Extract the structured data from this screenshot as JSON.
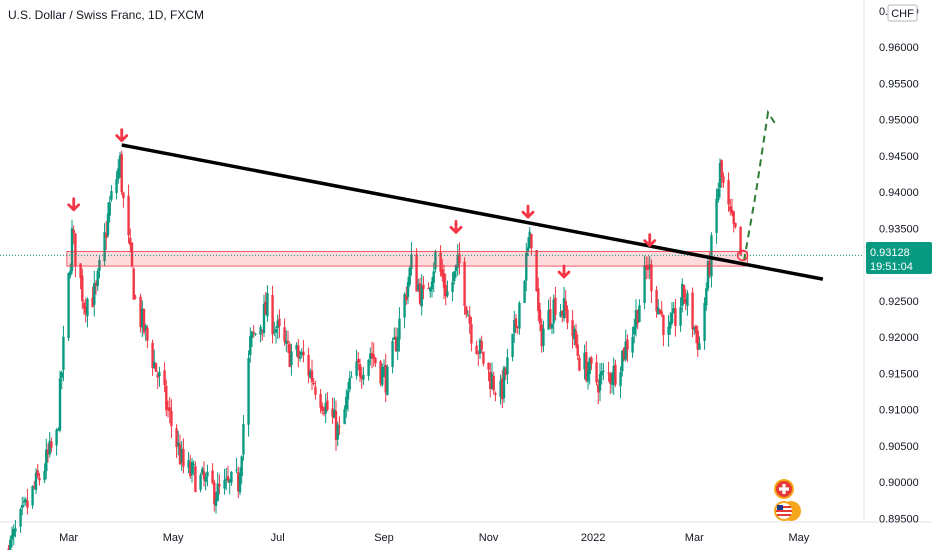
{
  "header": {
    "title": "U.S. Dollar / Swiss Franc, 1D, FXCM",
    "currency_badge": "CHF"
  },
  "price_badge": {
    "price": "0.93128",
    "countdown": "19:51:04",
    "color": "#089981"
  },
  "colors": {
    "up": "#089981",
    "down": "#f23645",
    "trendline": "#000000",
    "support_zone": "#f23645",
    "projection": "#2e7d32",
    "arrows": "#f23645"
  },
  "icons": [
    "swiss-flag-icon",
    "us-flag-icon"
  ],
  "chart_data": {
    "type": "candlestick",
    "title": "U.S. Dollar / Swiss Franc, 1D, FXCM",
    "y_ticks": [
      "0.96500",
      "0.96000",
      "0.95500",
      "0.95000",
      "0.94500",
      "0.94000",
      "0.93500",
      "0.93000",
      "0.92500",
      "0.92000",
      "0.91500",
      "0.91000",
      "0.90500",
      "0.90000",
      "0.89500"
    ],
    "x_ticks": [
      "Mar",
      "May",
      "Jul",
      "Sep",
      "Nov",
      "2022",
      "Mar",
      "May"
    ],
    "ylim": [
      0.8945,
      0.9665
    ],
    "last_price": 0.93128,
    "close_path": [
      [
        "2021-01-25",
        0.8905
      ],
      [
        "2021-02-08",
        0.8985
      ],
      [
        "2021-02-22",
        0.906
      ],
      [
        "2021-03-03",
        0.934
      ],
      [
        "2021-03-10",
        0.925
      ],
      [
        "2021-03-17",
        0.926
      ],
      [
        "2021-03-25",
        0.938
      ],
      [
        "2021-03-31",
        0.944
      ],
      [
        "2021-04-02",
        0.9385
      ],
      [
        "2021-04-09",
        0.925
      ],
      [
        "2021-04-23",
        0.914
      ],
      [
        "2021-05-07",
        0.902
      ],
      [
        "2021-05-18",
        0.9
      ],
      [
        "2021-05-27",
        0.8985
      ],
      [
        "2021-06-08",
        0.9
      ],
      [
        "2021-06-15",
        0.919
      ],
      [
        "2021-06-25",
        0.924
      ],
      [
        "2021-07-06",
        0.918
      ],
      [
        "2021-07-16",
        0.917
      ],
      [
        "2021-07-26",
        0.912
      ],
      [
        "2021-08-06",
        0.9065
      ],
      [
        "2021-08-13",
        0.914
      ],
      [
        "2021-08-24",
        0.918
      ],
      [
        "2021-09-03",
        0.914
      ],
      [
        "2021-09-10",
        0.922
      ],
      [
        "2021-09-17",
        0.93
      ],
      [
        "2021-09-24",
        0.925
      ],
      [
        "2021-10-01",
        0.931
      ],
      [
        "2021-10-08",
        0.926
      ],
      [
        "2021-10-15",
        0.93
      ],
      [
        "2021-10-22",
        0.921
      ],
      [
        "2021-11-01",
        0.915
      ],
      [
        "2021-11-08",
        0.912
      ],
      [
        "2021-11-15",
        0.919
      ],
      [
        "2021-11-23",
        0.9305
      ],
      [
        "2021-11-26",
        0.934
      ],
      [
        "2021-12-01",
        0.92
      ],
      [
        "2021-12-10",
        0.925
      ],
      [
        "2021-12-17",
        0.923
      ],
      [
        "2021-12-24",
        0.917
      ],
      [
        "2022-01-03",
        0.914
      ],
      [
        "2022-01-13",
        0.915
      ],
      [
        "2022-01-24",
        0.921
      ],
      [
        "2022-02-02",
        0.93
      ],
      [
        "2022-02-07",
        0.925
      ],
      [
        "2022-02-14",
        0.92
      ],
      [
        "2022-02-23",
        0.926
      ],
      [
        "2022-03-04",
        0.919
      ],
      [
        "2022-03-07",
        0.925
      ],
      [
        "2022-03-11",
        0.932
      ],
      [
        "2022-03-16",
        0.943
      ],
      [
        "2022-03-21",
        0.937
      ],
      [
        "2022-03-28",
        0.9313
      ]
    ],
    "annotations": {
      "trendline": [
        [
          "2021-04-01",
          0.9465
        ],
        [
          "2022-05-15",
          0.928
        ]
      ],
      "support_zone": [
        0.9298,
        0.9318
      ],
      "projection": [
        [
          "2022-03-30",
          0.9305
        ],
        [
          "2022-04-06",
          0.94
        ],
        [
          "2022-04-13",
          0.951
        ],
        [
          "2022-04-17",
          0.9495
        ]
      ],
      "resistance_arrows": [
        "2021-03-04",
        "2021-04-01",
        "2021-10-13",
        "2021-11-24",
        "2021-12-15",
        "2022-02-03"
      ]
    }
  }
}
